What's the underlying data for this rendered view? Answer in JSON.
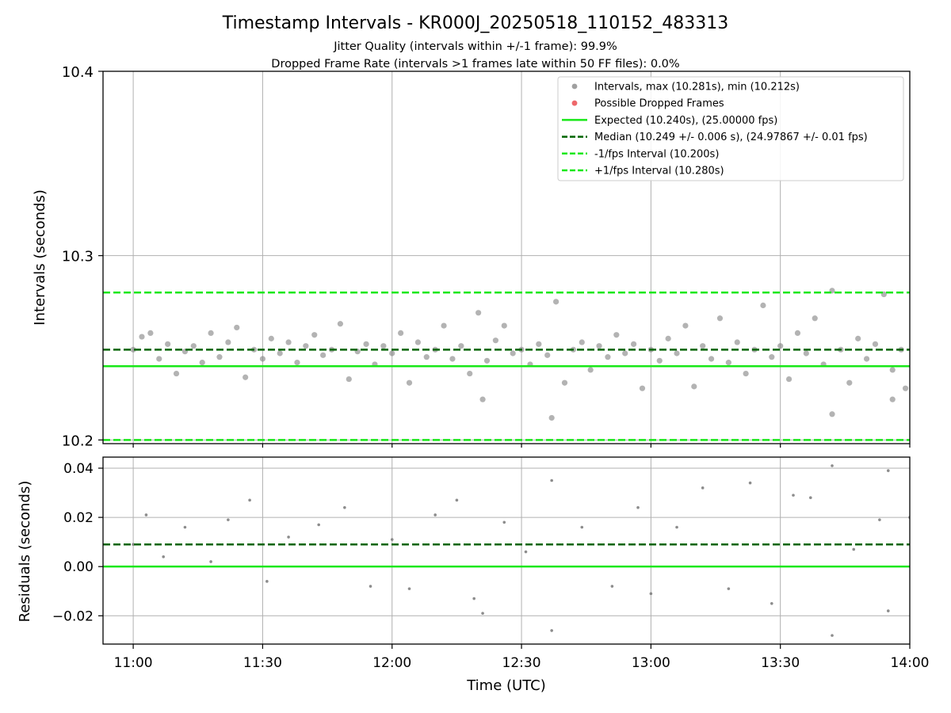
{
  "figure": {
    "title": "Timestamp Intervals - KR000J_20250518_110152_483313",
    "subtitle_1": "Jitter Quality (intervals within +/-1 frame): 99.9%",
    "subtitle_2": "Dropped Frame Rate (intervals >1 frames late within 50 FF files): 0.0%"
  },
  "colors": {
    "points": "#808080",
    "dropped": "#e8353a",
    "expected": "#18e818",
    "median": "#006400",
    "fps_bounds": "#18e818",
    "grid": "#b0b0b0"
  },
  "chart_data": [
    {
      "type": "scatter",
      "panel": "top",
      "ylabel": "Intervals (seconds)",
      "xlabel": "",
      "ylim": [
        10.198,
        10.4
      ],
      "xlim": [
        "10:53",
        "14:00"
      ],
      "yticks": [
        "10.2",
        "10.3",
        "10.4"
      ],
      "grid": true,
      "legend_position": "top-right",
      "legend": [
        {
          "label": "Intervals, max (10.281s), min (10.212s)",
          "style": "point",
          "color": "#808080"
        },
        {
          "label": "Possible Dropped Frames",
          "style": "point",
          "color": "#e8353a"
        },
        {
          "label": "Expected (10.240s), (25.00000 fps)",
          "style": "solid",
          "color": "#18e818"
        },
        {
          "label": "Median (10.249 +/- 0.006 s), (24.97867 +/- 0.01 fps)",
          "style": "dashed",
          "color": "#006400"
        },
        {
          "label": "-1/fps Interval (10.200s)",
          "style": "dashed",
          "color": "#18e818"
        },
        {
          "label": "+1/fps Interval (10.280s)",
          "style": "dashed",
          "color": "#18e818"
        }
      ],
      "reference_lines": {
        "expected": 10.24,
        "median": 10.249,
        "minus_fps": 10.2,
        "plus_fps": 10.28
      },
      "series": [
        {
          "name": "Intervals, max (10.281s), min (10.212s)",
          "points": [
            [
              "11:00",
              10.249
            ],
            [
              "11:02",
              10.256
            ],
            [
              "11:04",
              10.258
            ],
            [
              "11:06",
              10.244
            ],
            [
              "11:08",
              10.252
            ],
            [
              "11:10",
              10.236
            ],
            [
              "11:12",
              10.248
            ],
            [
              "11:14",
              10.251
            ],
            [
              "11:16",
              10.242
            ],
            [
              "11:18",
              10.258
            ],
            [
              "11:20",
              10.245
            ],
            [
              "11:22",
              10.253
            ],
            [
              "11:24",
              10.261
            ],
            [
              "11:26",
              10.234
            ],
            [
              "11:28",
              10.249
            ],
            [
              "11:30",
              10.244
            ],
            [
              "11:32",
              10.255
            ],
            [
              "11:34",
              10.247
            ],
            [
              "11:36",
              10.253
            ],
            [
              "11:38",
              10.242
            ],
            [
              "11:40",
              10.251
            ],
            [
              "11:42",
              10.257
            ],
            [
              "11:44",
              10.246
            ],
            [
              "11:46",
              10.249
            ],
            [
              "11:48",
              10.263
            ],
            [
              "11:50",
              10.233
            ],
            [
              "11:52",
              10.248
            ],
            [
              "11:54",
              10.252
            ],
            [
              "11:56",
              10.241
            ],
            [
              "11:58",
              10.251
            ],
            [
              "12:00",
              10.247
            ],
            [
              "12:02",
              10.258
            ],
            [
              "12:04",
              10.231
            ],
            [
              "12:06",
              10.253
            ],
            [
              "12:08",
              10.245
            ],
            [
              "12:10",
              10.249
            ],
            [
              "12:12",
              10.262
            ],
            [
              "12:14",
              10.244
            ],
            [
              "12:16",
              10.251
            ],
            [
              "12:18",
              10.236
            ],
            [
              "12:20",
              10.269
            ],
            [
              "12:22",
              10.243
            ],
            [
              "12:24",
              10.254
            ],
            [
              "12:26",
              10.262
            ],
            [
              "12:28",
              10.247
            ],
            [
              "12:30",
              10.249
            ],
            [
              "12:32",
              10.241
            ],
            [
              "12:34",
              10.252
            ],
            [
              "12:36",
              10.246
            ],
            [
              "12:38",
              10.275
            ],
            [
              "12:40",
              10.231
            ],
            [
              "12:42",
              10.249
            ],
            [
              "12:44",
              10.253
            ],
            [
              "12:46",
              10.238
            ],
            [
              "12:48",
              10.251
            ],
            [
              "12:50",
              10.245
            ],
            [
              "12:52",
              10.257
            ],
            [
              "12:54",
              10.247
            ],
            [
              "12:56",
              10.252
            ],
            [
              "12:58",
              10.228
            ],
            [
              "13:00",
              10.249
            ],
            [
              "13:02",
              10.243
            ],
            [
              "13:04",
              10.255
            ],
            [
              "13:06",
              10.247
            ],
            [
              "13:08",
              10.262
            ],
            [
              "13:10",
              10.229
            ],
            [
              "13:12",
              10.251
            ],
            [
              "13:14",
              10.244
            ],
            [
              "13:16",
              10.266
            ],
            [
              "13:18",
              10.242
            ],
            [
              "13:20",
              10.253
            ],
            [
              "13:22",
              10.236
            ],
            [
              "13:24",
              10.249
            ],
            [
              "13:26",
              10.273
            ],
            [
              "13:28",
              10.245
            ],
            [
              "13:30",
              10.251
            ],
            [
              "13:32",
              10.233
            ],
            [
              "13:34",
              10.258
            ],
            [
              "13:36",
              10.247
            ],
            [
              "13:38",
              10.266
            ],
            [
              "13:40",
              10.241
            ],
            [
              "13:42",
              10.281
            ],
            [
              "13:44",
              10.249
            ],
            [
              "13:46",
              10.231
            ],
            [
              "13:48",
              10.255
            ],
            [
              "13:50",
              10.244
            ],
            [
              "13:52",
              10.252
            ],
            [
              "13:54",
              10.279
            ],
            [
              "13:56",
              10.238
            ],
            [
              "13:58",
              10.249
            ],
            [
              "12:37",
              10.212
            ],
            [
              "13:42",
              10.214
            ],
            [
              "12:21",
              10.222
            ],
            [
              "13:56",
              10.222
            ],
            [
              "13:59",
              10.228
            ]
          ]
        }
      ]
    },
    {
      "type": "scatter",
      "panel": "bottom",
      "ylabel": "Residuals (seconds)",
      "xlabel": "Time (UTC)",
      "ylim": [
        -0.0315,
        0.0445
      ],
      "xlim": [
        "10:53",
        "14:00"
      ],
      "xticks": [
        "11:00",
        "11:30",
        "12:00",
        "12:30",
        "13:00",
        "13:30",
        "14:00"
      ],
      "yticks": [
        "−0.02",
        "0.00",
        "0.02",
        "0.04"
      ],
      "grid": true,
      "reference_lines": {
        "zero": 0.0,
        "median": 0.009
      },
      "series": [
        {
          "name": "Residuals",
          "points": [
            [
              "11:00",
              0.009
            ],
            [
              "11:03",
              0.021
            ],
            [
              "11:07",
              0.004
            ],
            [
              "11:12",
              0.016
            ],
            [
              "11:18",
              0.002
            ],
            [
              "11:22",
              0.019
            ],
            [
              "11:27",
              0.027
            ],
            [
              "11:31",
              -0.006
            ],
            [
              "11:36",
              0.012
            ],
            [
              "11:43",
              0.017
            ],
            [
              "11:49",
              0.024
            ],
            [
              "11:55",
              -0.008
            ],
            [
              "12:00",
              0.011
            ],
            [
              "12:04",
              -0.009
            ],
            [
              "12:10",
              0.021
            ],
            [
              "12:15",
              0.027
            ],
            [
              "12:19",
              -0.013
            ],
            [
              "12:21",
              -0.019
            ],
            [
              "12:26",
              0.018
            ],
            [
              "12:31",
              0.006
            ],
            [
              "12:37",
              0.035
            ],
            [
              "12:37",
              -0.026
            ],
            [
              "12:44",
              0.016
            ],
            [
              "12:51",
              -0.008
            ],
            [
              "12:57",
              0.024
            ],
            [
              "13:00",
              -0.011
            ],
            [
              "13:06",
              0.016
            ],
            [
              "13:12",
              0.032
            ],
            [
              "13:18",
              -0.009
            ],
            [
              "13:23",
              0.034
            ],
            [
              "13:28",
              -0.015
            ],
            [
              "13:33",
              0.029
            ],
            [
              "13:37",
              0.028
            ],
            [
              "13:42",
              0.041
            ],
            [
              "13:42",
              -0.028
            ],
            [
              "13:47",
              0.007
            ],
            [
              "13:53",
              0.019
            ],
            [
              "13:55",
              0.039
            ],
            [
              "13:55",
              -0.018
            ],
            [
              "14:00",
              0.02
            ]
          ]
        }
      ]
    }
  ]
}
